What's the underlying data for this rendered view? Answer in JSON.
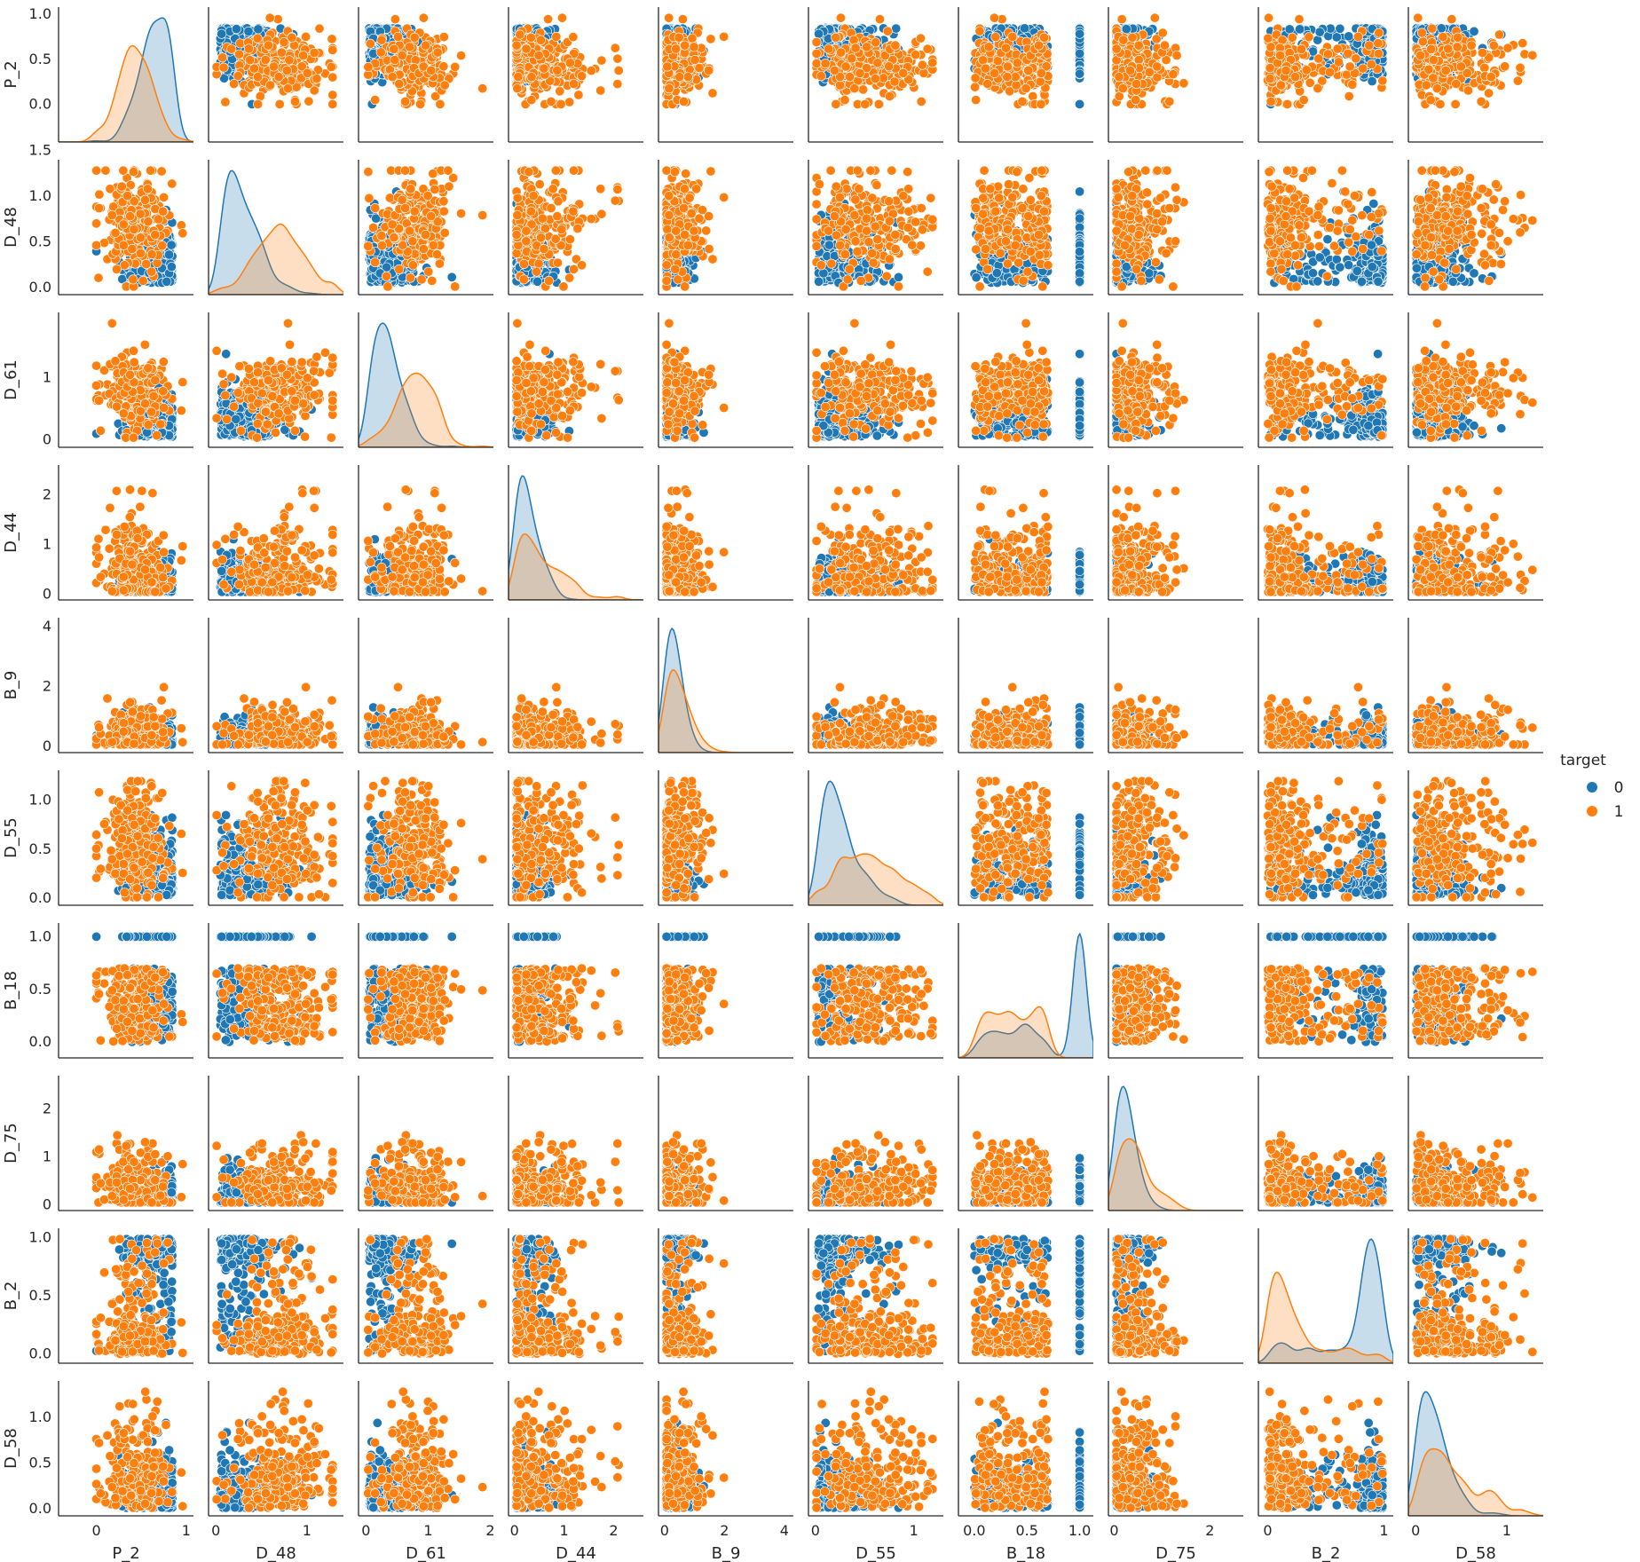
{
  "chart_data": {
    "type": "scatter",
    "variables": [
      "P_2",
      "D_48",
      "D_61",
      "D_44",
      "B_9",
      "D_55",
      "B_18",
      "D_75",
      "B_2",
      "D_58"
    ],
    "ranges": {
      "P_2": [
        -0.42,
        1.08
      ],
      "D_48": [
        -0.08,
        1.4
      ],
      "D_61": [
        -0.12,
        2.05
      ],
      "D_44": [
        -0.12,
        2.6
      ],
      "B_9": [
        -0.2,
        4.3
      ],
      "D_55": [
        -0.07,
        1.3
      ],
      "B_18": [
        -0.15,
        1.13
      ],
      "D_75": [
        -0.12,
        2.7
      ],
      "B_2": [
        -0.08,
        1.08
      ],
      "D_58": [
        -0.08,
        1.4
      ]
    },
    "xticks": {
      "P_2": {
        "values": [
          0,
          1
        ],
        "labels": [
          "0",
          "1"
        ]
      },
      "D_48": {
        "values": [
          0,
          1
        ],
        "labels": [
          "0",
          "1"
        ]
      },
      "D_61": {
        "values": [
          0,
          1,
          2
        ],
        "labels": [
          "0",
          "1",
          "2"
        ]
      },
      "D_44": {
        "values": [
          0,
          1,
          2
        ],
        "labels": [
          "0",
          "1",
          "2"
        ]
      },
      "B_9": {
        "values": [
          0,
          2,
          4
        ],
        "labels": [
          "0",
          "2",
          "4"
        ]
      },
      "D_55": {
        "values": [
          0,
          1
        ],
        "labels": [
          "0",
          "1"
        ]
      },
      "B_18": {
        "values": [
          0,
          0.5,
          1
        ],
        "labels": [
          "0.0",
          "0.5",
          "1.0"
        ]
      },
      "D_75": {
        "values": [
          0,
          2
        ],
        "labels": [
          "0",
          "2"
        ]
      },
      "B_2": {
        "values": [
          0,
          1
        ],
        "labels": [
          "0",
          "1"
        ]
      },
      "D_58": {
        "values": [
          0,
          1
        ],
        "labels": [
          "0",
          "1"
        ]
      }
    },
    "yticks": {
      "P_2": {
        "values": [
          0,
          0.5,
          1
        ],
        "labels": [
          "0.0",
          "0.5",
          "1.0"
        ]
      },
      "D_48": {
        "values": [
          0,
          0.5,
          1,
          1.5
        ],
        "labels": [
          "0.0",
          "0.5",
          "1.0",
          "1.5"
        ]
      },
      "D_61": {
        "values": [
          0,
          1
        ],
        "labels": [
          "0",
          "1"
        ]
      },
      "D_44": {
        "values": [
          0,
          1,
          2
        ],
        "labels": [
          "0",
          "1",
          "2"
        ]
      },
      "B_9": {
        "values": [
          0,
          2,
          4
        ],
        "labels": [
          "0",
          "2",
          "4"
        ]
      },
      "D_55": {
        "values": [
          0,
          0.5,
          1
        ],
        "labels": [
          "0.0",
          "0.5",
          "1.0"
        ]
      },
      "B_18": {
        "values": [
          0,
          0.5,
          1
        ],
        "labels": [
          "0.0",
          "0.5",
          "1.0"
        ]
      },
      "D_75": {
        "values": [
          0,
          1,
          2
        ],
        "labels": [
          "0",
          "1",
          "2"
        ]
      },
      "B_2": {
        "values": [
          0,
          0.5,
          1
        ],
        "labels": [
          "0.0",
          "0.5",
          "1.0"
        ]
      },
      "D_58": {
        "values": [
          0,
          0.5,
          1
        ],
        "labels": [
          "0.0",
          "0.5",
          "1.0"
        ]
      }
    },
    "legend": {
      "title": "target",
      "placement": "right",
      "entries": [
        {
          "label": "0",
          "color": "#1f77b4"
        },
        {
          "label": "1",
          "color": "#ff7f0e"
        }
      ]
    },
    "colors": {
      "0": "#1f77b4",
      "1": "#ff7f0e"
    },
    "diagonal": "kde",
    "grid": false
  }
}
